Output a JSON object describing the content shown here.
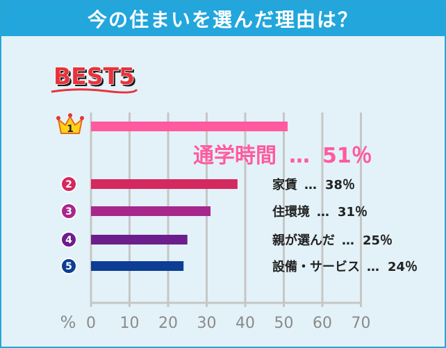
{
  "header": {
    "title": "今の住まいを選んだ理由は？"
  },
  "badge": {
    "text": "BEST5"
  },
  "colors": {
    "header": "#22a6dc",
    "background": "#e3f2f8",
    "accent_red": "#e8323c",
    "crown": "#ffd21a"
  },
  "chart_data": {
    "type": "bar",
    "orientation": "horizontal",
    "title": "今の住まいを選んだ理由は？",
    "unit_label": "%",
    "xlim": [
      0,
      70
    ],
    "x_ticks": [
      0,
      10,
      20,
      30,
      40,
      50,
      60,
      70
    ],
    "grid": true,
    "items": [
      {
        "rank": "1",
        "name": "通学時間",
        "value": 51,
        "label_value": "51％",
        "color": "#ff5aa0",
        "label_color": "#ff5aa0",
        "badge": "crown"
      },
      {
        "rank": "2",
        "name": "家賃",
        "value": 38,
        "label_value": "38％",
        "color": "#d4295e",
        "label_color": "#222222",
        "badge": "circle",
        "badge_color": "#d4295e"
      },
      {
        "rank": "3",
        "name": "住環境",
        "value": 31,
        "label_value": "31％",
        "color": "#a8278c",
        "label_color": "#222222",
        "badge": "circle",
        "badge_color": "#a8278c"
      },
      {
        "rank": "4",
        "name": "親が選んだ",
        "value": 25,
        "label_value": "25％",
        "color": "#6c1f8c",
        "label_color": "#222222",
        "badge": "circle",
        "badge_color": "#6c1f8c"
      },
      {
        "rank": "5",
        "name": "設備・サービス",
        "value": 24,
        "label_value": "24％",
        "color": "#0d3d94",
        "label_color": "#222222",
        "badge": "circle",
        "badge_color": "#0d3d94"
      }
    ],
    "separator": "…"
  }
}
